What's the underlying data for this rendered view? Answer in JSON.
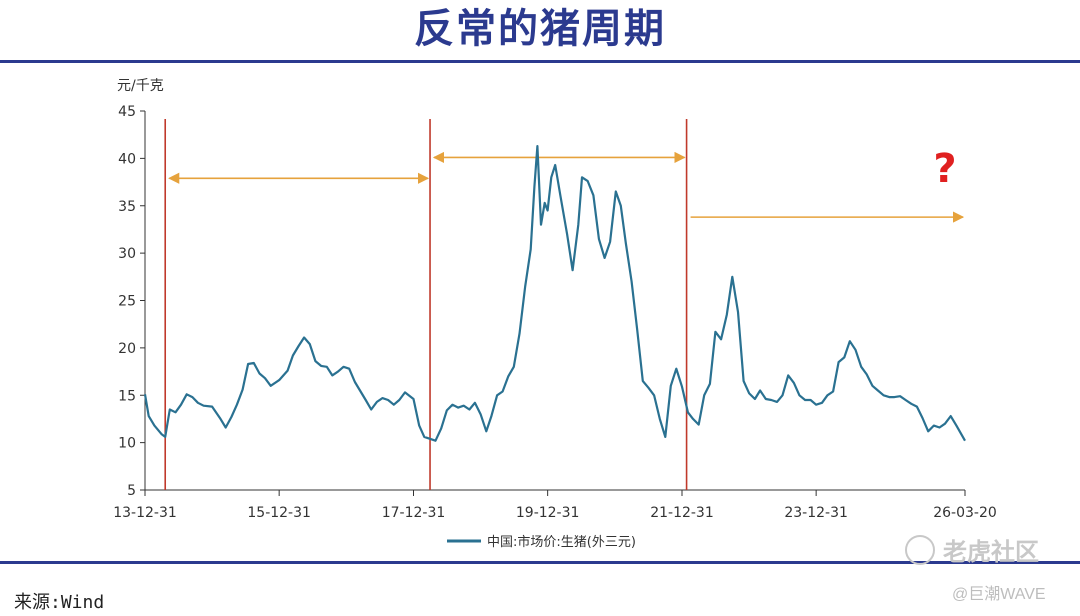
{
  "title": "反常的猪周期",
  "source": "来源:Wind",
  "watermark": {
    "logo_text": "老虎社区",
    "handle": "@巨潮WAVE"
  },
  "colors": {
    "title": "#2b3a8f",
    "line": "#2a7191",
    "marker": "#c0392b",
    "arrow": "#e6a23c",
    "question": "#e02020"
  },
  "chart_data": {
    "type": "line",
    "unit_label": "元/千克",
    "ylim": [
      5,
      45
    ],
    "yticks": [
      5,
      10,
      15,
      20,
      25,
      30,
      35,
      40,
      45
    ],
    "xlim": [
      "2013-12-31",
      "2026-03-20"
    ],
    "xticks": [
      {
        "date": "2013-12-31",
        "label": "13-12-31"
      },
      {
        "date": "2015-12-31",
        "label": "15-12-31"
      },
      {
        "date": "2017-12-31",
        "label": "17-12-31"
      },
      {
        "date": "2019-12-31",
        "label": "19-12-31"
      },
      {
        "date": "2021-12-31",
        "label": "21-12-31"
      },
      {
        "date": "2023-12-31",
        "label": "23-12-31"
      },
      {
        "date": "2026-03-20",
        "label": "26-03-20"
      }
    ],
    "grid": false,
    "legend": "bottom-center",
    "series": [
      {
        "name": "中国:市场价:生猪(外三元)",
        "points": [
          [
            "2013-12-31",
            15.1
          ],
          [
            "2014-01-20",
            12.8
          ],
          [
            "2014-02-20",
            11.8
          ],
          [
            "2014-03-31",
            10.9
          ],
          [
            "2014-04-20",
            10.6
          ],
          [
            "2014-05-15",
            13.5
          ],
          [
            "2014-06-15",
            13.2
          ],
          [
            "2014-07-15",
            14.0
          ],
          [
            "2014-08-15",
            15.1
          ],
          [
            "2014-09-15",
            14.8
          ],
          [
            "2014-10-15",
            14.2
          ],
          [
            "2014-11-15",
            13.9
          ],
          [
            "2014-12-31",
            13.8
          ],
          [
            "2015-02-15",
            12.5
          ],
          [
            "2015-03-15",
            11.6
          ],
          [
            "2015-04-15",
            12.7
          ],
          [
            "2015-05-15",
            14.0
          ],
          [
            "2015-06-15",
            15.6
          ],
          [
            "2015-07-15",
            18.3
          ],
          [
            "2015-08-15",
            18.4
          ],
          [
            "2015-09-15",
            17.3
          ],
          [
            "2015-10-15",
            16.8
          ],
          [
            "2015-11-15",
            16.0
          ],
          [
            "2015-12-31",
            16.6
          ],
          [
            "2016-02-15",
            17.6
          ],
          [
            "2016-03-15",
            19.2
          ],
          [
            "2016-04-15",
            20.2
          ],
          [
            "2016-05-15",
            21.1
          ],
          [
            "2016-06-15",
            20.4
          ],
          [
            "2016-07-15",
            18.6
          ],
          [
            "2016-08-15",
            18.1
          ],
          [
            "2016-09-15",
            18.0
          ],
          [
            "2016-10-15",
            17.1
          ],
          [
            "2016-11-15",
            17.5
          ],
          [
            "2016-12-15",
            18.0
          ],
          [
            "2017-01-15",
            17.8
          ],
          [
            "2017-02-15",
            16.4
          ],
          [
            "2017-03-15",
            15.5
          ],
          [
            "2017-04-15",
            14.5
          ],
          [
            "2017-05-15",
            13.5
          ],
          [
            "2017-06-15",
            14.3
          ],
          [
            "2017-07-15",
            14.7
          ],
          [
            "2017-08-15",
            14.5
          ],
          [
            "2017-09-15",
            14.0
          ],
          [
            "2017-10-15",
            14.5
          ],
          [
            "2017-11-15",
            15.3
          ],
          [
            "2017-12-31",
            14.6
          ],
          [
            "2018-01-31",
            11.8
          ],
          [
            "2018-02-28",
            10.6
          ],
          [
            "2018-03-31",
            10.4
          ],
          [
            "2018-04-30",
            10.2
          ],
          [
            "2018-05-31",
            11.5
          ],
          [
            "2018-06-30",
            13.4
          ],
          [
            "2018-07-31",
            14.0
          ],
          [
            "2018-08-31",
            13.7
          ],
          [
            "2018-09-30",
            13.9
          ],
          [
            "2018-10-31",
            13.5
          ],
          [
            "2018-11-30",
            14.2
          ],
          [
            "2018-12-31",
            13.0
          ],
          [
            "2019-01-31",
            11.2
          ],
          [
            "2019-02-28",
            12.8
          ],
          [
            "2019-03-31",
            15.0
          ],
          [
            "2019-04-30",
            15.4
          ],
          [
            "2019-05-31",
            17.0
          ],
          [
            "2019-06-30",
            18.0
          ],
          [
            "2019-07-31",
            21.5
          ],
          [
            "2019-08-31",
            26.5
          ],
          [
            "2019-09-30",
            30.4
          ],
          [
            "2019-10-20",
            37.0
          ],
          [
            "2019-11-05",
            41.3
          ],
          [
            "2019-11-25",
            33.0
          ],
          [
            "2019-12-15",
            35.3
          ],
          [
            "2019-12-31",
            34.5
          ],
          [
            "2020-01-20",
            38.0
          ],
          [
            "2020-02-10",
            39.3
          ],
          [
            "2020-03-10",
            36.0
          ],
          [
            "2020-04-15",
            32.0
          ],
          [
            "2020-05-15",
            28.2
          ],
          [
            "2020-06-15",
            33.0
          ],
          [
            "2020-07-05",
            38.0
          ],
          [
            "2020-08-05",
            37.6
          ],
          [
            "2020-09-05",
            36.1
          ],
          [
            "2020-10-05",
            31.5
          ],
          [
            "2020-11-05",
            29.5
          ],
          [
            "2020-12-05",
            31.2
          ],
          [
            "2021-01-05",
            36.5
          ],
          [
            "2021-02-01",
            35.0
          ],
          [
            "2021-03-01",
            31.0
          ],
          [
            "2021-04-01",
            27.0
          ],
          [
            "2021-05-01",
            22.0
          ],
          [
            "2021-06-01",
            16.5
          ],
          [
            "2021-07-01",
            15.8
          ],
          [
            "2021-08-01",
            15.0
          ],
          [
            "2021-09-01",
            12.5
          ],
          [
            "2021-10-01",
            10.6
          ],
          [
            "2021-10-31",
            16.0
          ],
          [
            "2021-11-30",
            17.8
          ],
          [
            "2021-12-31",
            15.9
          ],
          [
            "2022-02-01",
            13.2
          ],
          [
            "2022-03-01",
            12.5
          ],
          [
            "2022-04-01",
            11.9
          ],
          [
            "2022-05-01",
            15.0
          ],
          [
            "2022-06-01",
            16.2
          ],
          [
            "2022-07-01",
            21.7
          ],
          [
            "2022-08-01",
            20.9
          ],
          [
            "2022-09-01",
            23.5
          ],
          [
            "2022-10-01",
            27.5
          ],
          [
            "2022-11-01",
            23.8
          ],
          [
            "2022-12-01",
            16.5
          ],
          [
            "2023-01-01",
            15.2
          ],
          [
            "2023-02-01",
            14.6
          ],
          [
            "2023-03-01",
            15.5
          ],
          [
            "2023-04-01",
            14.6
          ],
          [
            "2023-05-01",
            14.5
          ],
          [
            "2023-06-01",
            14.3
          ],
          [
            "2023-07-01",
            15.0
          ],
          [
            "2023-08-01",
            17.1
          ],
          [
            "2023-09-01",
            16.3
          ],
          [
            "2023-10-01",
            15.0
          ],
          [
            "2023-11-01",
            14.5
          ],
          [
            "2023-12-01",
            14.5
          ],
          [
            "2023-12-31",
            14.0
          ],
          [
            "2024-02-01",
            14.2
          ],
          [
            "2024-03-01",
            15.0
          ],
          [
            "2024-04-01",
            15.4
          ],
          [
            "2024-05-01",
            18.5
          ],
          [
            "2024-06-01",
            19.0
          ],
          [
            "2024-07-01",
            20.7
          ],
          [
            "2024-08-01",
            19.8
          ],
          [
            "2024-09-01",
            18.0
          ],
          [
            "2024-10-01",
            17.2
          ],
          [
            "2024-11-01",
            16.0
          ],
          [
            "2024-12-01",
            15.5
          ],
          [
            "2025-01-01",
            15.0
          ],
          [
            "2025-02-01",
            14.8
          ],
          [
            "2025-03-01",
            14.8
          ],
          [
            "2025-04-01",
            14.9
          ],
          [
            "2025-05-01",
            14.5
          ],
          [
            "2025-06-01",
            14.1
          ],
          [
            "2025-07-01",
            13.8
          ],
          [
            "2025-08-01",
            12.6
          ],
          [
            "2025-09-01",
            11.2
          ],
          [
            "2025-10-01",
            11.8
          ],
          [
            "2025-11-01",
            11.6
          ],
          [
            "2025-12-01",
            12.0
          ],
          [
            "2026-01-01",
            12.8
          ],
          [
            "2026-02-01",
            11.8
          ],
          [
            "2026-03-20",
            10.2
          ]
        ]
      }
    ],
    "annotations": {
      "markers": [
        "2014-04-20",
        "2018-03-31",
        "2022-01-25"
      ],
      "cycle_arrows": [
        {
          "from": "2014-04-20",
          "to": "2018-03-31",
          "y": 37.9
        },
        {
          "from": "2018-03-31",
          "to": "2022-01-25",
          "y": 40.1
        },
        {
          "from": "2022-01-25",
          "to": "2026-03-20",
          "y": 33.8
        }
      ],
      "question_mark": {
        "text": "?",
        "x": "2025-12-01",
        "y": 37.5
      }
    }
  }
}
